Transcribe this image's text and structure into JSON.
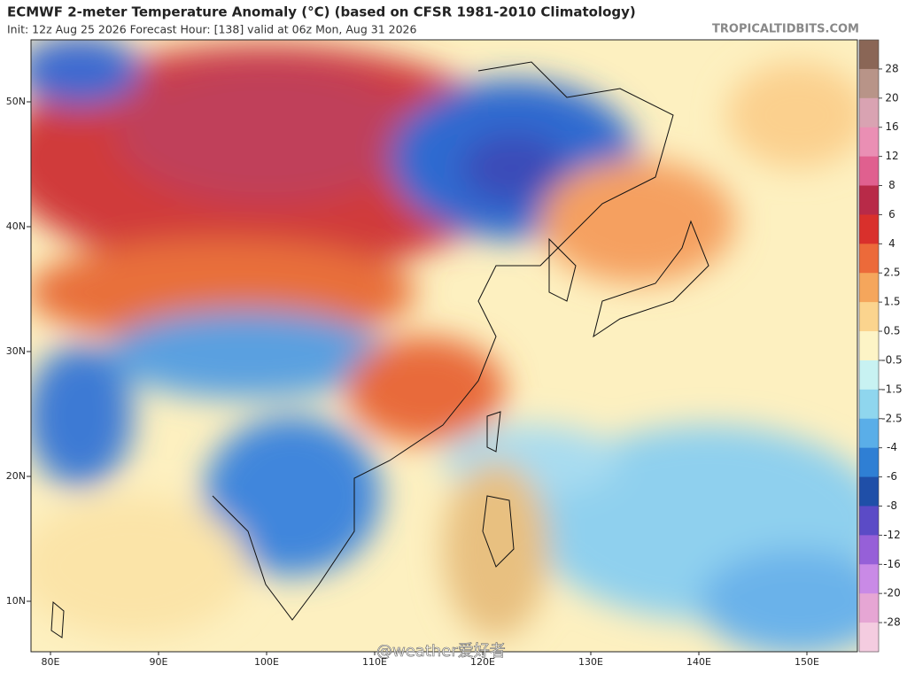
{
  "header": {
    "title": "ECMWF 2-meter Temperature Anomaly (°C) (based on CFSR 1981-2010 Climatology)",
    "subtitle": "Init: 12z Aug 25 2026   Forecast Hour: [138]   valid at 06z Mon, Aug 31 2026",
    "source": "TROPICALTIDBITS.COM"
  },
  "map": {
    "lat_labels": [
      "50N",
      "40N",
      "30N",
      "20N",
      "10N"
    ],
    "lon_labels": [
      "80E",
      "90E",
      "100E",
      "110E",
      "120E",
      "130E",
      "140E",
      "150E"
    ],
    "watermark": "@weather爱好者"
  },
  "colorbar": {
    "labels": [
      "28",
      "20",
      "16",
      "12",
      "8",
      "6",
      "4",
      "2.5",
      "1.5",
      "0.5",
      "-0.5",
      "-1.5",
      "-2.5",
      "-4",
      "-6",
      "-8",
      "-12",
      "-16",
      "-20",
      "-28"
    ],
    "colors": [
      "#8a6656",
      "#b89488",
      "#d9a3b2",
      "#ea8fb4",
      "#e0608f",
      "#b82a48",
      "#d9302c",
      "#ec6a3a",
      "#f5a65c",
      "#fbd48e",
      "#fdf4c6",
      "#c8f2f2",
      "#8fd6ee",
      "#5aaee8",
      "#2f7fd4",
      "#1f4fa8",
      "#5b4bc6",
      "#9660d8",
      "#c98ae6",
      "#e6a6d4",
      "#f4cce0"
    ]
  }
}
